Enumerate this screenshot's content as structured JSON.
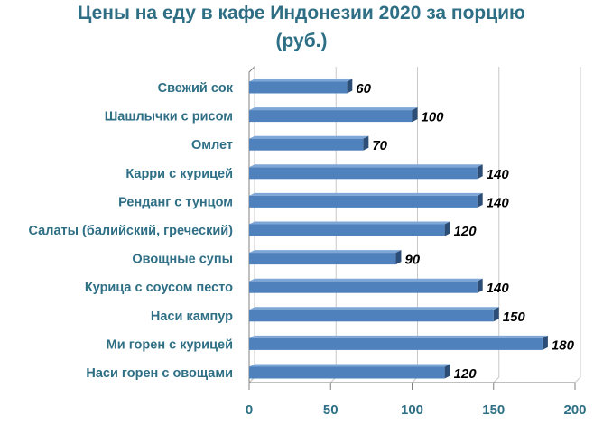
{
  "chart_data": {
    "type": "bar",
    "orientation": "horizontal",
    "title_line1": "Цены на еду в кафе Индонезии 2020 за порцию",
    "title_line2": "(руб.)",
    "categories": [
      "Свежий сок",
      "Шашлычки с рисом",
      "Омлет",
      "Карри с курицей",
      "Ренданг с тунцом",
      "Салаты (балийский, греческий)",
      "Овощные супы",
      "Курица с соусом песто",
      "Наси кампур",
      "Ми горен с курицей",
      "Наси горен с овощами"
    ],
    "values": [
      60,
      100,
      70,
      140,
      140,
      120,
      90,
      140,
      150,
      180,
      120
    ],
    "data_labels": [
      "60",
      "100",
      "70",
      "140",
      "140",
      "120",
      "90",
      "140",
      "150",
      "180",
      "120"
    ],
    "xlim": [
      0,
      200
    ],
    "x_ticks": [
      "0",
      "50",
      "100",
      "150",
      "200"
    ],
    "grid": "vertical",
    "legend": "none",
    "colors": {
      "title": "#2e6f86",
      "category_labels": "#2e6f86",
      "bar_front": "#4f81bd",
      "bar_top": "#7ea6d6",
      "bar_side": "#2c4d75",
      "grid": "#c8c8c8",
      "axis": "#808080",
      "data_labels": "#000000"
    }
  }
}
